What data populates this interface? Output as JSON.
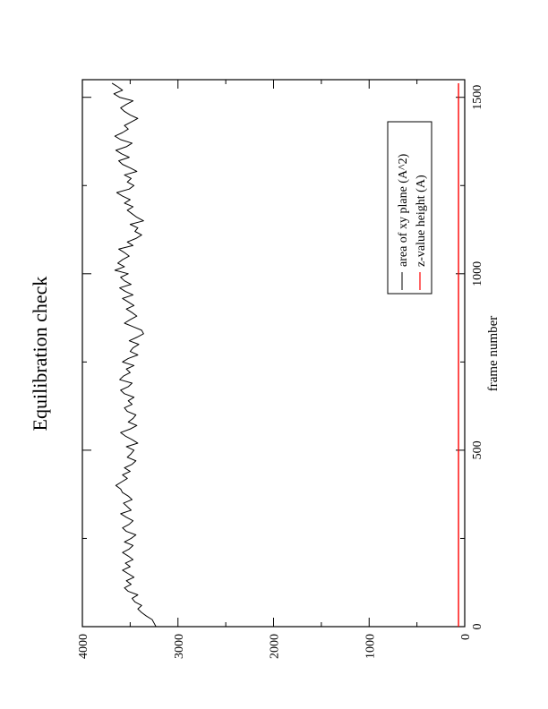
{
  "chart_data": {
    "type": "line",
    "title": "Equilibration check",
    "xlabel": "frame number",
    "ylabel": "",
    "xlim": [
      0,
      1550
    ],
    "ylim": [
      0,
      4000
    ],
    "x_ticks": [
      0,
      500,
      1000,
      1500
    ],
    "y_ticks": [
      0,
      1000,
      2000,
      3000,
      4000
    ],
    "x_tick_labels": [
      "0",
      "500",
      "1000",
      "1500"
    ],
    "y_tick_labels": [
      "0",
      "1000",
      "2000",
      "3000",
      "4000"
    ],
    "x_minor_step": 250,
    "y_minor_step": 500,
    "orientation": "rotated 90 degrees counter-clockwise",
    "grid": false,
    "legend_position": "top-right",
    "series": [
      {
        "name": "area of xy plane (A^2)",
        "color": "#000000",
        "x": [
          0,
          10,
          20,
          30,
          40,
          50,
          60,
          70,
          80,
          90,
          100,
          110,
          120,
          130,
          140,
          150,
          160,
          170,
          180,
          190,
          200,
          210,
          220,
          230,
          240,
          250,
          260,
          270,
          280,
          290,
          300,
          310,
          320,
          330,
          340,
          350,
          360,
          370,
          380,
          390,
          400,
          410,
          420,
          430,
          440,
          450,
          460,
          470,
          480,
          490,
          500,
          510,
          520,
          530,
          540,
          550,
          560,
          570,
          580,
          590,
          600,
          610,
          620,
          630,
          640,
          650,
          660,
          670,
          680,
          690,
          700,
          710,
          720,
          730,
          740,
          750,
          760,
          770,
          780,
          790,
          800,
          810,
          820,
          830,
          840,
          850,
          860,
          870,
          880,
          890,
          900,
          910,
          920,
          930,
          940,
          950,
          960,
          970,
          980,
          990,
          1000,
          1010,
          1020,
          1030,
          1040,
          1050,
          1060,
          1070,
          1080,
          1090,
          1100,
          1110,
          1120,
          1130,
          1140,
          1150,
          1160,
          1170,
          1180,
          1190,
          1200,
          1210,
          1220,
          1230,
          1240,
          1250,
          1260,
          1270,
          1280,
          1290,
          1300,
          1310,
          1320,
          1330,
          1340,
          1350,
          1360,
          1370,
          1380,
          1390,
          1400,
          1410,
          1420,
          1430,
          1440,
          1450,
          1460,
          1470,
          1480,
          1490,
          1500,
          1510,
          1520,
          1530,
          1540
        ],
        "y": [
          3230,
          3250,
          3270,
          3330,
          3380,
          3420,
          3380,
          3450,
          3480,
          3420,
          3520,
          3560,
          3490,
          3540,
          3460,
          3520,
          3580,
          3500,
          3550,
          3470,
          3520,
          3580,
          3510,
          3470,
          3560,
          3490,
          3440,
          3540,
          3580,
          3510,
          3470,
          3540,
          3600,
          3490,
          3530,
          3570,
          3480,
          3520,
          3580,
          3600,
          3650,
          3590,
          3530,
          3580,
          3500,
          3560,
          3480,
          3440,
          3530,
          3490,
          3460,
          3540,
          3420,
          3480,
          3550,
          3600,
          3500,
          3430,
          3520,
          3470,
          3440,
          3530,
          3560,
          3480,
          3520,
          3460,
          3560,
          3600,
          3520,
          3480,
          3610,
          3570,
          3500,
          3540,
          3460,
          3580,
          3520,
          3420,
          3500,
          3470,
          3410,
          3510,
          3430,
          3360,
          3380,
          3470,
          3560,
          3500,
          3430,
          3480,
          3540,
          3460,
          3520,
          3580,
          3470,
          3550,
          3610,
          3490,
          3560,
          3600,
          3520,
          3660,
          3560,
          3630,
          3580,
          3510,
          3560,
          3620,
          3470,
          3530,
          3440,
          3380,
          3450,
          3420,
          3500,
          3360,
          3430,
          3480,
          3530,
          3470,
          3560,
          3500,
          3580,
          3640,
          3510,
          3460,
          3530,
          3490,
          3560,
          3430,
          3500,
          3580,
          3620,
          3510,
          3590,
          3650,
          3540,
          3480,
          3600,
          3660,
          3580,
          3520,
          3560,
          3490,
          3420,
          3500,
          3560,
          3600,
          3540,
          3470,
          3610,
          3670,
          3580,
          3630,
          3690
        ]
      },
      {
        "name": "z-value height (A)",
        "color": "#ff0000",
        "x": [
          0,
          1540
        ],
        "y": [
          65,
          65
        ]
      }
    ]
  }
}
